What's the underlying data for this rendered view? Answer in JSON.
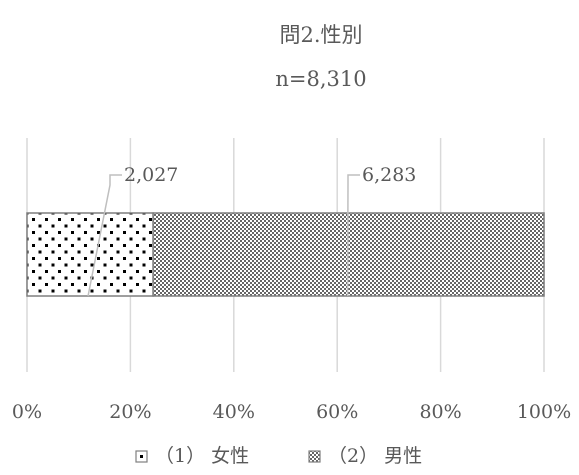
{
  "chart_data": {
    "type": "bar",
    "orientation": "horizontal",
    "stacked": "percent",
    "title": "問2.性別",
    "subtitle": "n=8,310",
    "categories": [
      ""
    ],
    "series": [
      {
        "name": "（1） 女性",
        "values": [
          2027
        ],
        "data_label": "2,027",
        "pattern": "dots"
      },
      {
        "name": "（2） 男性",
        "values": [
          6283
        ],
        "data_label": "6,283",
        "pattern": "checker"
      }
    ],
    "x_ticks": [
      "0%",
      "20%",
      "40%",
      "60%",
      "80%",
      "100%"
    ],
    "xlim": [
      0,
      1
    ],
    "grid": "vertical",
    "legend_position": "bottom"
  },
  "colors": {
    "text": "#595959",
    "grid": "#d9d9d9",
    "bar_border": "#7f7f7f",
    "pattern": "#000000",
    "leader_line": "#bfbfbf"
  }
}
